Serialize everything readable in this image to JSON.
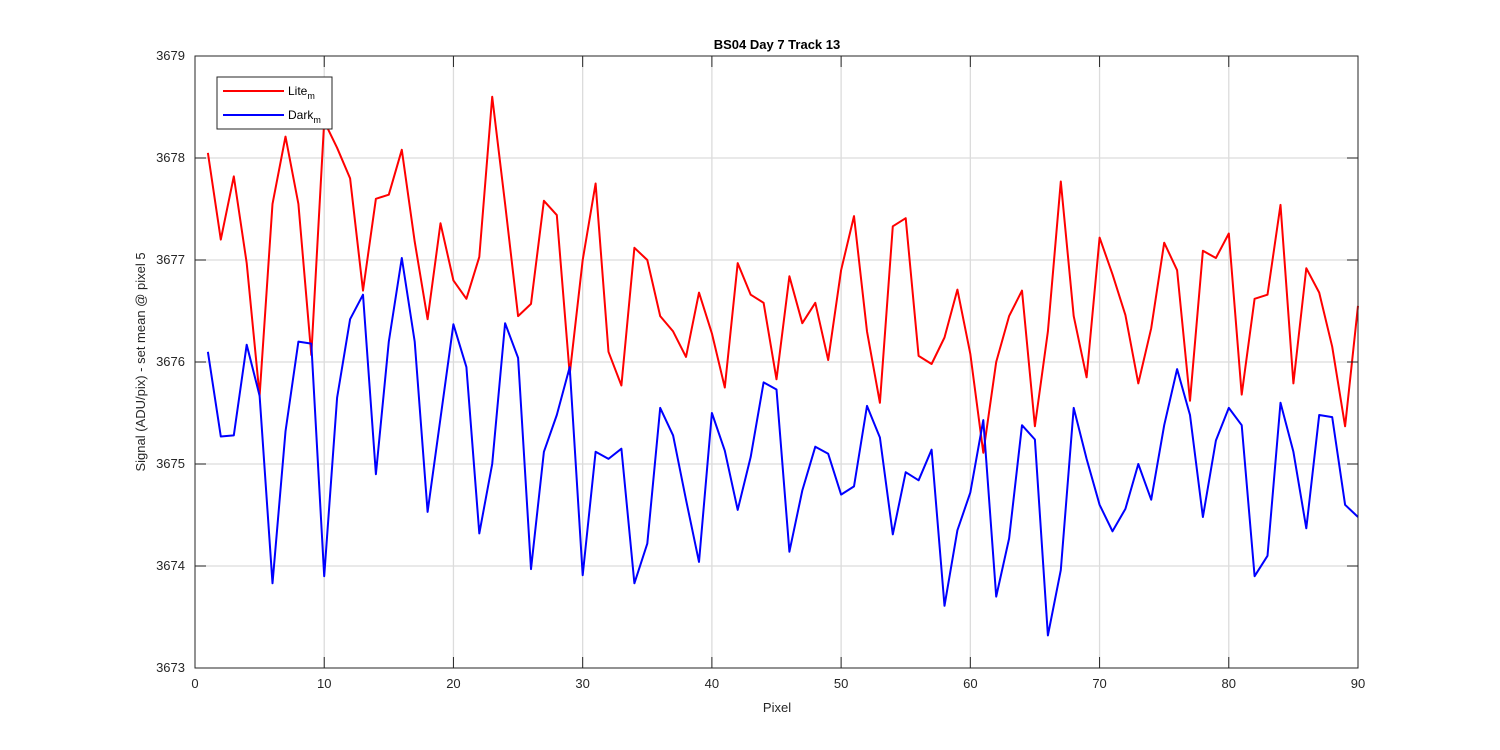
{
  "chart_data": {
    "type": "line",
    "title": "BS04 Day 7 Track 13",
    "xlabel": "Pixel",
    "ylabel": "Signal (ADU/pix) - set mean @ pixel 5",
    "xlim": [
      0,
      90
    ],
    "ylim": [
      3673,
      3679
    ],
    "xticks": [
      0,
      10,
      20,
      30,
      40,
      50,
      60,
      70,
      80,
      90
    ],
    "yticks": [
      3673,
      3674,
      3675,
      3676,
      3677,
      3678,
      3679
    ],
    "grid": true,
    "legend": "top-left",
    "x": [
      1,
      2,
      3,
      4,
      5,
      6,
      7,
      8,
      9,
      10,
      11,
      12,
      13,
      14,
      15,
      16,
      17,
      18,
      19,
      20,
      21,
      22,
      23,
      24,
      25,
      26,
      27,
      28,
      29,
      30,
      31,
      32,
      33,
      34,
      35,
      36,
      37,
      38,
      39,
      40,
      41,
      42,
      43,
      44,
      45,
      46,
      47,
      48,
      49,
      50,
      51,
      52,
      53,
      54,
      55,
      56,
      57,
      58,
      59,
      60,
      61,
      62,
      63,
      64,
      65,
      66,
      67,
      68,
      69,
      70,
      71,
      72,
      73,
      74,
      75,
      76,
      77,
      78,
      79,
      80,
      81,
      82,
      83,
      84,
      85,
      86,
      87,
      88,
      89,
      90
    ],
    "series": [
      {
        "name": "Lite",
        "name_subscript": "m",
        "color": "#ff0000",
        "values": [
          3678.05,
          3677.2,
          3677.82,
          3676.97,
          3675.67,
          3677.55,
          3678.21,
          3677.55,
          3676.07,
          3678.36,
          3678.1,
          3677.8,
          3676.7,
          3677.6,
          3677.64,
          3678.08,
          3677.18,
          3676.42,
          3677.36,
          3676.8,
          3676.62,
          3677.03,
          3678.6,
          3677.55,
          3676.45,
          3676.57,
          3677.58,
          3677.44,
          3675.88,
          3677.0,
          3677.75,
          3676.1,
          3675.77,
          3677.12,
          3677.0,
          3676.45,
          3676.3,
          3676.05,
          3676.68,
          3676.28,
          3675.75,
          3676.97,
          3676.66,
          3676.58,
          3675.83,
          3676.84,
          3676.38,
          3676.58,
          3676.02,
          3676.9,
          3677.43,
          3676.3,
          3675.6,
          3677.33,
          3677.41,
          3676.06,
          3675.98,
          3676.24,
          3676.71,
          3676.08,
          3675.11,
          3676.0,
          3676.45,
          3676.7,
          3675.37,
          3676.3,
          3677.77,
          3676.45,
          3675.85,
          3677.22,
          3676.86,
          3676.46,
          3675.79,
          3676.33,
          3677.17,
          3676.9,
          3675.62,
          3677.09,
          3677.02,
          3677.26,
          3675.68,
          3676.62,
          3676.66,
          3677.54,
          3675.79,
          3676.92,
          3676.68,
          3676.15,
          3675.37,
          3676.55
        ]
      },
      {
        "name": "Dark",
        "name_subscript": "m",
        "color": "#0000ff",
        "values": [
          3676.1,
          3675.27,
          3675.28,
          3676.17,
          3675.67,
          3673.83,
          3675.32,
          3676.2,
          3676.18,
          3673.9,
          3675.65,
          3676.42,
          3676.66,
          3674.9,
          3676.2,
          3677.02,
          3676.2,
          3674.53,
          3675.45,
          3676.37,
          3675.95,
          3674.32,
          3675.0,
          3676.38,
          3676.04,
          3673.97,
          3675.12,
          3675.48,
          3675.95,
          3673.91,
          3675.12,
          3675.05,
          3675.15,
          3673.83,
          3674.22,
          3675.55,
          3675.28,
          3674.65,
          3674.04,
          3675.5,
          3675.13,
          3674.55,
          3675.07,
          3675.8,
          3675.73,
          3674.14,
          3674.74,
          3675.17,
          3675.1,
          3674.7,
          3674.78,
          3675.57,
          3675.26,
          3674.31,
          3674.92,
          3674.84,
          3675.14,
          3673.61,
          3674.35,
          3674.72,
          3675.43,
          3673.7,
          3674.27,
          3675.38,
          3675.24,
          3673.32,
          3673.96,
          3675.55,
          3675.05,
          3674.6,
          3674.34,
          3674.56,
          3675.0,
          3674.65,
          3675.38,
          3675.93,
          3675.48,
          3674.48,
          3675.23,
          3675.55,
          3675.38,
          3673.9,
          3674.1,
          3675.6,
          3675.12,
          3674.37,
          3675.48,
          3675.46,
          3674.6,
          3674.48
        ]
      }
    ]
  }
}
